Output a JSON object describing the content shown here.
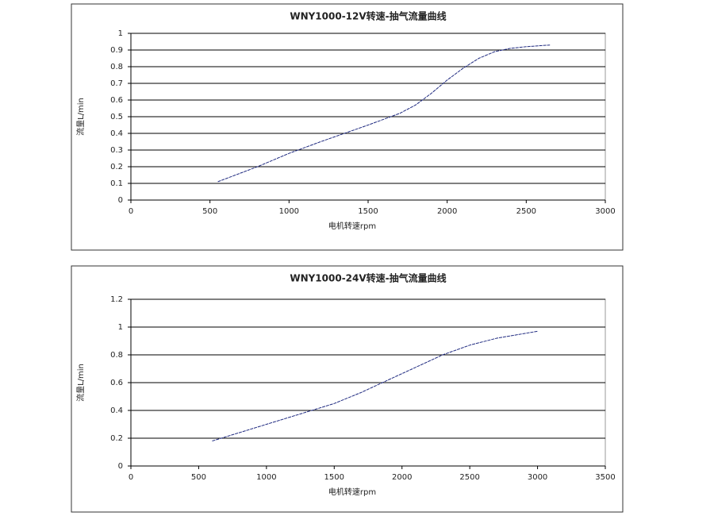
{
  "chart_data": [
    {
      "type": "line",
      "title": "WNY1000-12V转速-抽气流量曲线",
      "x_label": "电机转速rpm",
      "y_label": "流量L/min",
      "x": [
        550,
        800,
        1000,
        1200,
        1500,
        1700,
        1800,
        1900,
        2000,
        2100,
        2200,
        2300,
        2400,
        2500,
        2650
      ],
      "values": [
        0.11,
        0.2,
        0.28,
        0.35,
        0.45,
        0.52,
        0.57,
        0.64,
        0.72,
        0.79,
        0.85,
        0.89,
        0.91,
        0.92,
        0.93
      ],
      "color": "#1f2a80",
      "xlim": [
        0,
        3000
      ],
      "xticks": [
        0,
        500,
        1000,
        1500,
        2000,
        2500,
        3000
      ],
      "ylim": [
        0,
        1
      ],
      "yticks": [
        0,
        0.1,
        0.2,
        0.3,
        0.4,
        0.5,
        0.6,
        0.7,
        0.8,
        0.9,
        1
      ],
      "grid": true
    },
    {
      "type": "line",
      "title": "WNY1000-24V转速-抽气流量曲线",
      "x_label": "电机转速rpm",
      "y_label": "流量L/min",
      "x": [
        600,
        1000,
        1300,
        1500,
        1700,
        1900,
        2100,
        2300,
        2500,
        2700,
        3000
      ],
      "values": [
        0.18,
        0.3,
        0.39,
        0.45,
        0.53,
        0.62,
        0.71,
        0.8,
        0.87,
        0.92,
        0.97
      ],
      "color": "#1f2a80",
      "xlim": [
        0,
        3500
      ],
      "xticks": [
        0,
        500,
        1000,
        1500,
        2000,
        2500,
        3000,
        3500
      ],
      "ylim": [
        0,
        1.2
      ],
      "yticks": [
        0,
        0.2,
        0.4,
        0.6,
        0.8,
        1,
        1.2
      ],
      "grid": true
    }
  ]
}
